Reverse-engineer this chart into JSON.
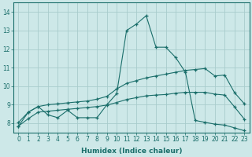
{
  "xlabel": "Humidex (Indice chaleur)",
  "ylabel": "",
  "bg_color": "#cde8e8",
  "grid_color": "#a8cccc",
  "line_color": "#1a6e6a",
  "xlim": [
    -0.5,
    23.5
  ],
  "ylim": [
    7.5,
    14.5
  ],
  "yticks": [
    8,
    9,
    10,
    11,
    12,
    13,
    14
  ],
  "xticks": [
    0,
    1,
    2,
    3,
    4,
    5,
    6,
    7,
    8,
    9,
    10,
    11,
    12,
    13,
    14,
    15,
    16,
    17,
    18,
    19,
    20,
    21,
    22,
    23
  ],
  "line1_x": [
    0,
    1,
    2,
    3,
    4,
    5,
    6,
    7,
    8,
    9,
    10,
    11,
    12,
    13,
    14,
    15,
    16,
    17,
    18,
    19,
    20,
    21,
    22,
    23
  ],
  "line1_y": [
    7.85,
    8.6,
    8.9,
    8.45,
    8.3,
    8.7,
    8.3,
    8.3,
    8.3,
    9.0,
    9.6,
    13.0,
    13.35,
    13.8,
    12.1,
    12.1,
    11.55,
    10.75,
    8.15,
    8.05,
    7.95,
    7.9,
    7.75,
    7.6
  ],
  "line2_x": [
    0,
    1,
    2,
    3,
    4,
    5,
    6,
    7,
    8,
    9,
    10,
    11,
    12,
    13,
    14,
    15,
    16,
    17,
    18,
    19,
    20,
    21,
    22,
    23
  ],
  "line2_y": [
    8.05,
    8.6,
    8.9,
    9.0,
    9.05,
    9.1,
    9.15,
    9.2,
    9.3,
    9.45,
    9.85,
    10.15,
    10.3,
    10.45,
    10.55,
    10.65,
    10.75,
    10.85,
    10.9,
    10.95,
    10.55,
    10.6,
    9.65,
    9.05
  ],
  "line3_x": [
    0,
    1,
    2,
    3,
    4,
    5,
    6,
    7,
    8,
    9,
    10,
    11,
    12,
    13,
    14,
    15,
    16,
    17,
    18,
    19,
    20,
    21,
    22,
    23
  ],
  "line3_y": [
    7.85,
    8.25,
    8.6,
    8.65,
    8.7,
    8.75,
    8.8,
    8.85,
    8.9,
    8.98,
    9.12,
    9.28,
    9.38,
    9.48,
    9.52,
    9.55,
    9.62,
    9.67,
    9.67,
    9.67,
    9.57,
    9.52,
    8.88,
    8.22
  ]
}
